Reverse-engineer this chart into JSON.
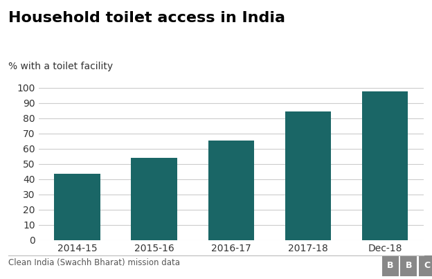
{
  "title": "Household toilet access in India",
  "ylabel": "% with a toilet facility",
  "categories": [
    "2014-15",
    "2015-16",
    "2016-17",
    "2017-18",
    "Dec-18"
  ],
  "values": [
    43.5,
    54.0,
    65.5,
    84.5,
    97.5
  ],
  "bar_color": "#1a6666",
  "ylim": [
    0,
    110
  ],
  "yticks": [
    0,
    10,
    20,
    30,
    40,
    50,
    60,
    70,
    80,
    90,
    100
  ],
  "title_fontsize": 16,
  "ylabel_fontsize": 10,
  "tick_fontsize": 10,
  "footnote": "Clean India (Swachh Bharat) mission data",
  "footnote_fontsize": 8.5,
  "bbc_text": "BBC",
  "background_color": "#ffffff",
  "grid_color": "#cccccc"
}
